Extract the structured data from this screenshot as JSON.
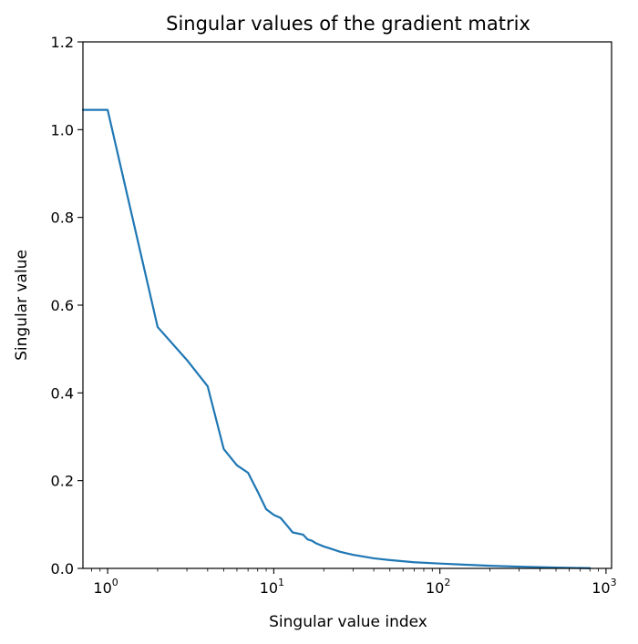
{
  "chart_data": {
    "type": "line",
    "title": "Singular values of the gradient matrix",
    "xlabel": "Singular value index",
    "ylabel": "Singular value",
    "xscale": "log",
    "xlim": [
      0.71,
      1080
    ],
    "ylim": [
      0,
      1.2
    ],
    "grid": false,
    "legend": "none",
    "line_color": "#1f77b4",
    "yticks": [
      0.0,
      0.2,
      0.4,
      0.6,
      0.8,
      1.0,
      1.2
    ],
    "ytick_labels": [
      "0.0",
      "0.2",
      "0.4",
      "0.6",
      "0.8",
      "1.0",
      "1.2"
    ],
    "xticks_major": [
      {
        "value": 1,
        "base": "10",
        "exp": "0"
      },
      {
        "value": 10,
        "base": "10",
        "exp": "1"
      },
      {
        "value": 100,
        "base": "10",
        "exp": "2"
      },
      {
        "value": 1000,
        "base": "10",
        "exp": "3"
      }
    ],
    "x": [
      0,
      1,
      2,
      3,
      4,
      5,
      6,
      7,
      8,
      9,
      10,
      11,
      12,
      13,
      15,
      16,
      17,
      18,
      20,
      22,
      25,
      30,
      40,
      50,
      70,
      100,
      150,
      200,
      300,
      500,
      800
    ],
    "y": [
      1.045,
      1.045,
      0.55,
      0.475,
      0.415,
      0.272,
      0.235,
      0.218,
      0.175,
      0.135,
      0.122,
      0.115,
      0.098,
      0.082,
      0.077,
      0.066,
      0.063,
      0.057,
      0.05,
      0.045,
      0.038,
      0.031,
      0.023,
      0.019,
      0.014,
      0.011,
      0.008,
      0.006,
      0.004,
      0.002,
      0.0005
    ]
  }
}
